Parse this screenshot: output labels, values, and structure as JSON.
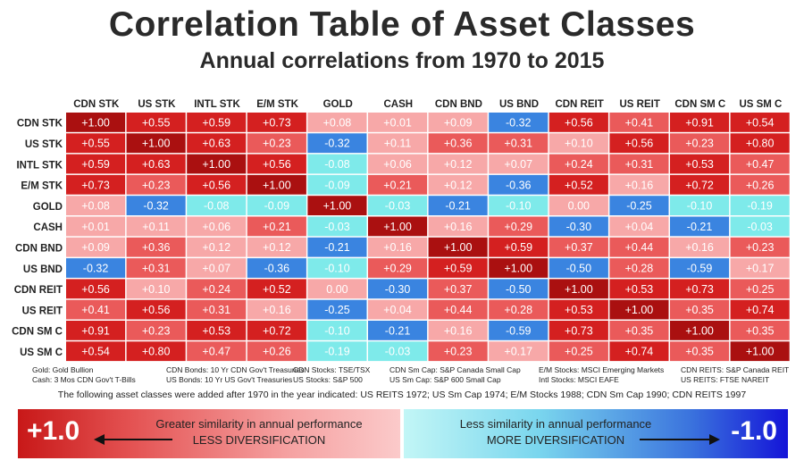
{
  "title": "Correlation Table of Asset Classes",
  "subtitle": "Annual correlations from 1970 to 2015",
  "chart_data": {
    "type": "heatmap",
    "labels": [
      "CDN STK",
      "US STK",
      "INTL STK",
      "E/M STK",
      "GOLD",
      "CASH",
      "CDN BND",
      "US BND",
      "CDN REIT",
      "US REIT",
      "CDN SM C",
      "US SM C"
    ],
    "values": [
      [
        1.0,
        0.55,
        0.59,
        0.73,
        0.08,
        0.01,
        0.09,
        -0.32,
        0.56,
        0.41,
        0.91,
        0.54
      ],
      [
        0.55,
        1.0,
        0.63,
        0.23,
        -0.32,
        0.11,
        0.36,
        0.31,
        0.1,
        0.56,
        0.23,
        0.8
      ],
      [
        0.59,
        0.63,
        1.0,
        0.56,
        -0.08,
        0.06,
        0.12,
        0.07,
        0.24,
        0.31,
        0.53,
        0.47
      ],
      [
        0.73,
        0.23,
        0.56,
        1.0,
        -0.09,
        0.21,
        0.12,
        -0.36,
        0.52,
        0.16,
        0.72,
        0.26
      ],
      [
        0.08,
        -0.32,
        -0.08,
        -0.09,
        1.0,
        -0.03,
        -0.21,
        -0.1,
        0.0,
        -0.25,
        -0.1,
        -0.19
      ],
      [
        0.01,
        0.11,
        0.06,
        0.21,
        -0.03,
        1.0,
        0.16,
        0.29,
        -0.3,
        0.04,
        -0.21,
        -0.03
      ],
      [
        0.09,
        0.36,
        0.12,
        0.12,
        -0.21,
        0.16,
        1.0,
        0.59,
        0.37,
        0.44,
        0.16,
        0.23
      ],
      [
        -0.32,
        0.31,
        0.07,
        -0.36,
        -0.1,
        0.29,
        0.59,
        1.0,
        -0.5,
        0.28,
        -0.59,
        0.17
      ],
      [
        0.56,
        0.1,
        0.24,
        0.52,
        0.0,
        -0.3,
        0.37,
        -0.5,
        1.0,
        0.53,
        0.73,
        0.25
      ],
      [
        0.41,
        0.56,
        0.31,
        0.16,
        -0.25,
        0.04,
        0.44,
        0.28,
        0.53,
        1.0,
        0.35,
        0.74
      ],
      [
        0.91,
        0.23,
        0.53,
        0.72,
        -0.1,
        -0.21,
        0.16,
        -0.59,
        0.73,
        0.35,
        1.0,
        0.35
      ],
      [
        0.54,
        0.8,
        0.47,
        0.26,
        -0.19,
        -0.03,
        0.23,
        0.17,
        0.25,
        0.74,
        0.35,
        1.0
      ]
    ],
    "colors": {
      "strong_pos": "#aa1010",
      "pos": "#d42020",
      "weak_pos": "#ea5a5a",
      "faint_pos": "#f7a8a8",
      "weak_neg": "#7eeaea",
      "neg": "#3a84e0"
    }
  },
  "notes": {
    "col1": [
      "Gold:  Gold Bullion",
      "Cash:  3 Mos CDN Gov't T-Bills"
    ],
    "col2": [
      "CDN Bonds: 10 Yr CDN Gov't Treasuries",
      "US Bonds: 10 Yr US Gov't Treasuries"
    ],
    "col3": [
      "CDN Stocks:  TSE/TSX",
      "US Stocks:  S&P 500"
    ],
    "col4": [
      "CDN Sm Cap:  S&P Canada Small Cap",
      "US Sm Cap:  S&P 600 Small Cap"
    ],
    "col5": [
      "E/M Stocks:  MSCI Emerging Markets",
      "Intl Stocks:  MSCI EAFE"
    ],
    "col6": [
      "CDN REITS:  S&P Canada REIT",
      "US REITS:  FTSE NAREIT"
    ]
  },
  "added_note": "The following asset classes were added after 1970 in the year indicated: US REITS 1972; US Sm Cap 1974; E/M Stocks 1988; CDN Sm Cap 1990; CDN REITS 1997",
  "legend": {
    "left_value": "+1.0",
    "left_line1": "Greater similarity in annual performance",
    "left_line2": "LESS DIVERSIFICATION",
    "right_value": "-1.0",
    "right_line1": "Less similarity in annual performance",
    "right_line2": "MORE DIVERSIFICATION"
  }
}
